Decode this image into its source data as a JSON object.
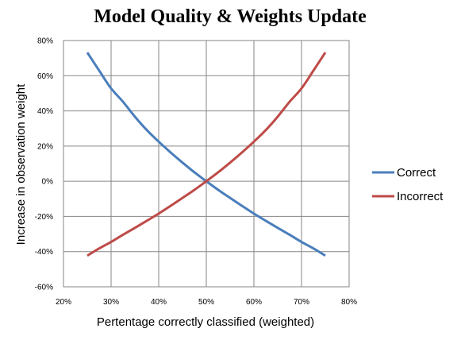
{
  "chart_data": {
    "type": "line",
    "title": "Model Quality & Weights Update",
    "xlabel": "Pertentage correctly classified (weighted)",
    "ylabel": "Increase in observation weight",
    "xlim": [
      0.2,
      0.8
    ],
    "ylim": [
      -0.6,
      0.8
    ],
    "x_ticks": [
      "20%",
      "30%",
      "40%",
      "50%",
      "60%",
      "70%",
      "80%"
    ],
    "y_ticks": [
      "80%",
      "60%",
      "40%",
      "20%",
      "0%",
      "-20%",
      "-40%",
      "-60%"
    ],
    "grid": true,
    "legend_position": "right",
    "series": [
      {
        "name": "Correct",
        "color": "#4a7ebb",
        "points": [
          [
            0.25,
            0.732
          ],
          [
            0.275,
            0.629
          ],
          [
            0.3,
            0.528
          ],
          [
            0.325,
            0.452
          ],
          [
            0.35,
            0.367
          ],
          [
            0.375,
            0.291
          ],
          [
            0.4,
            0.225
          ],
          [
            0.425,
            0.164
          ],
          [
            0.45,
            0.106
          ],
          [
            0.475,
            0.051
          ],
          [
            0.5,
            0.0
          ],
          [
            0.525,
            -0.049
          ],
          [
            0.55,
            -0.095
          ],
          [
            0.575,
            -0.14
          ],
          [
            0.6,
            -0.184
          ],
          [
            0.625,
            -0.225
          ],
          [
            0.65,
            -0.265
          ],
          [
            0.675,
            -0.304
          ],
          [
            0.7,
            -0.345
          ],
          [
            0.725,
            -0.382
          ],
          [
            0.75,
            -0.423
          ]
        ]
      },
      {
        "name": "Incorrect",
        "color": "#be4b48",
        "points": [
          [
            0.25,
            -0.423
          ],
          [
            0.275,
            -0.382
          ],
          [
            0.3,
            -0.345
          ],
          [
            0.325,
            -0.304
          ],
          [
            0.35,
            -0.265
          ],
          [
            0.375,
            -0.225
          ],
          [
            0.4,
            -0.184
          ],
          [
            0.425,
            -0.14
          ],
          [
            0.45,
            -0.095
          ],
          [
            0.475,
            -0.049
          ],
          [
            0.5,
            0.0
          ],
          [
            0.525,
            0.051
          ],
          [
            0.55,
            0.106
          ],
          [
            0.575,
            0.164
          ],
          [
            0.6,
            0.225
          ],
          [
            0.625,
            0.291
          ],
          [
            0.65,
            0.367
          ],
          [
            0.675,
            0.452
          ],
          [
            0.7,
            0.528
          ],
          [
            0.725,
            0.629
          ],
          [
            0.75,
            0.732
          ]
        ]
      }
    ]
  }
}
